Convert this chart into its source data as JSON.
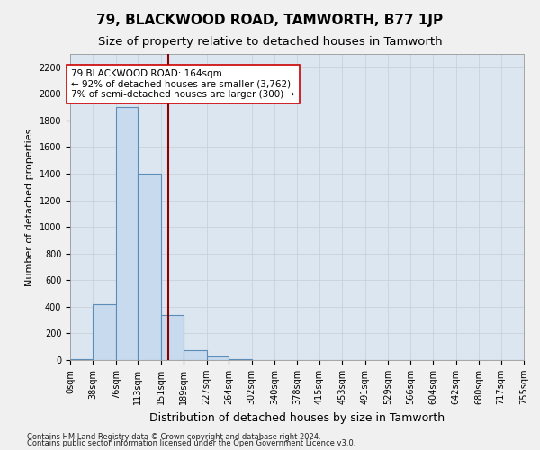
{
  "title": "79, BLACKWOOD ROAD, TAMWORTH, B77 1JP",
  "subtitle": "Size of property relative to detached houses in Tamworth",
  "xlabel": "Distribution of detached houses by size in Tamworth",
  "ylabel": "Number of detached properties",
  "footnote1": "Contains HM Land Registry data © Crown copyright and database right 2024.",
  "footnote2": "Contains public sector information licensed under the Open Government Licence v3.0.",
  "bin_edges": [
    0,
    38,
    76,
    113,
    151,
    189,
    227,
    264,
    302,
    340,
    378,
    415,
    453,
    491,
    529,
    566,
    604,
    642,
    680,
    717,
    755
  ],
  "bar_heights": [
    10,
    420,
    1900,
    1400,
    340,
    75,
    25,
    8,
    0,
    0,
    0,
    0,
    0,
    0,
    0,
    0,
    0,
    0,
    0,
    0
  ],
  "bar_color": "#c8daee",
  "bar_edge_color": "#5b8db8",
  "property_size": 164,
  "vline_color": "#8b0000",
  "annotation_line1": "79 BLACKWOOD ROAD: 164sqm",
  "annotation_line2": "← 92% of detached houses are smaller (3,762)",
  "annotation_line3": "7% of semi-detached houses are larger (300) →",
  "annotation_box_color": "#ffffff",
  "annotation_box_edge_color": "#cc0000",
  "ylim": [
    0,
    2300
  ],
  "yticks": [
    0,
    200,
    400,
    600,
    800,
    1000,
    1200,
    1400,
    1600,
    1800,
    2000,
    2200
  ],
  "grid_color": "#c8cdd4",
  "bg_color": "#dce6f0",
  "fig_bg_color": "#f0f0f0",
  "title_fontsize": 11,
  "subtitle_fontsize": 9.5,
  "ylabel_fontsize": 8,
  "xlabel_fontsize": 9,
  "tick_fontsize": 7,
  "footnote_fontsize": 6,
  "annot_fontsize": 7.5
}
